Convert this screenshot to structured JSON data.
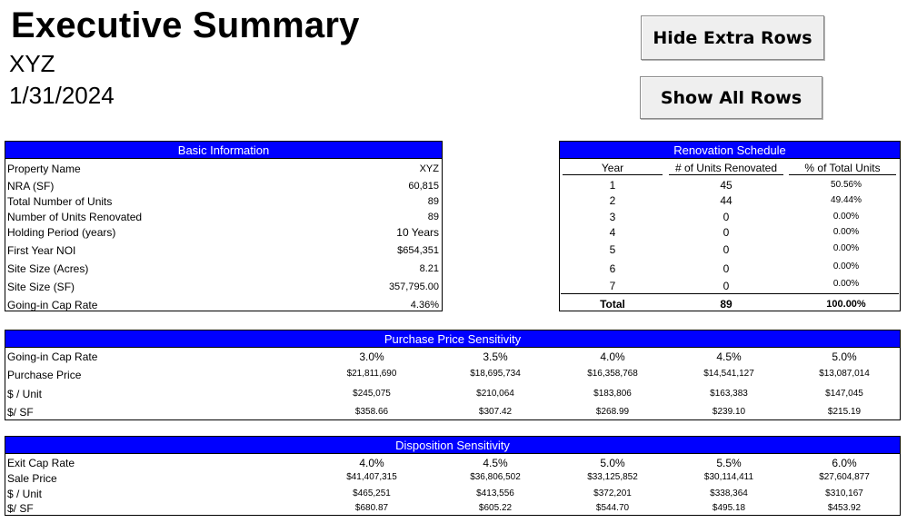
{
  "header": {
    "title": "Executive Summary",
    "property": "XYZ",
    "date": "1/31/2024"
  },
  "buttons": {
    "hide_label": "Hide Extra Rows",
    "show_label": "Show All Rows"
  },
  "basic": {
    "title": "Basic Information",
    "rows": [
      {
        "label": "Property Name",
        "value": "XYZ"
      },
      {
        "label": "NRA (SF)",
        "value": "60,815"
      },
      {
        "label": "Total Number of Units",
        "value": "89"
      },
      {
        "label": "Number of Units Renovated",
        "value": "89"
      },
      {
        "label": "Holding Period (years)",
        "value": "10 Years"
      },
      {
        "label": "First Year NOI",
        "value": "$654,351"
      },
      {
        "label": "Site Size (Acres)",
        "value": "8.21"
      },
      {
        "label": "Site Size (SF)",
        "value": "357,795.00"
      },
      {
        "label": "Going-in Cap Rate",
        "value": "4.36%"
      }
    ]
  },
  "renovation": {
    "title": "Renovation Schedule",
    "columns": [
      "Year",
      "# of Units Renovated",
      "% of Total Units"
    ],
    "rows": [
      [
        "1",
        "45",
        "50.56%"
      ],
      [
        "2",
        "44",
        "49.44%"
      ],
      [
        "3",
        "0",
        "0.00%"
      ],
      [
        "4",
        "0",
        "0.00%"
      ],
      [
        "5",
        "0",
        "0.00%"
      ],
      [
        "6",
        "0",
        "0.00%"
      ],
      [
        "7",
        "0",
        "0.00%"
      ]
    ],
    "total": [
      "Total",
      "89",
      "100.00%"
    ]
  },
  "purchase": {
    "title": "Purchase Price Sensitivity",
    "rows": [
      {
        "label": "Going-in Cap Rate",
        "values": [
          "3.0%",
          "3.5%",
          "4.0%",
          "4.5%",
          "5.0%"
        ]
      },
      {
        "label": "Purchase Price",
        "values": [
          "$21,811,690",
          "$18,695,734",
          "$16,358,768",
          "$14,541,127",
          "$13,087,014"
        ]
      },
      {
        "label": "$ / Unit",
        "values": [
          "$245,075",
          "$210,064",
          "$183,806",
          "$163,383",
          "$147,045"
        ]
      },
      {
        "label": "$/ SF",
        "values": [
          "$358.66",
          "$307.42",
          "$268.99",
          "$239.10",
          "$215.19"
        ]
      }
    ]
  },
  "disposition": {
    "title": "Disposition Sensitivity",
    "rows": [
      {
        "label": "Exit Cap Rate",
        "values": [
          "4.0%",
          "4.5%",
          "5.0%",
          "5.5%",
          "6.0%"
        ]
      },
      {
        "label": "Sale Price",
        "values": [
          "$41,407,315",
          "$36,806,502",
          "$33,125,852",
          "$30,114,411",
          "$27,604,877"
        ]
      },
      {
        "label": "$ / Unit",
        "values": [
          "$465,251",
          "$413,556",
          "$372,201",
          "$338,364",
          "$310,167"
        ]
      },
      {
        "label": "$/ SF",
        "values": [
          "$680.87",
          "$605.22",
          "$544.70",
          "$495.18",
          "$453.92"
        ]
      }
    ]
  }
}
